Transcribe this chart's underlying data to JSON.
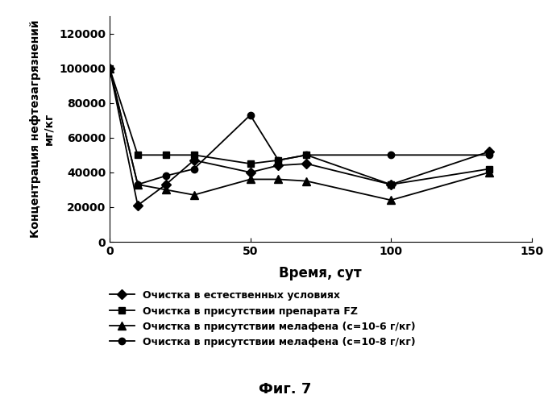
{
  "series": [
    {
      "label": "Очистка в естественных условиях",
      "x": [
        0,
        10,
        20,
        30,
        50,
        60,
        70,
        100,
        135
      ],
      "y": [
        100000,
        21000,
        33000,
        47000,
        40000,
        44000,
        45000,
        33000,
        52000
      ],
      "marker": "D",
      "markersize": 6
    },
    {
      "label": "Очистка в присутствии препарата FZ",
      "x": [
        0,
        10,
        20,
        30,
        50,
        60,
        70,
        100,
        135
      ],
      "y": [
        100000,
        50000,
        50000,
        50000,
        45000,
        47000,
        50000,
        33000,
        42000
      ],
      "marker": "s",
      "markersize": 6
    },
    {
      "label": "Очистка в присутствии мелафена (с=10-6 г/кг)",
      "x": [
        0,
        10,
        20,
        30,
        50,
        60,
        70,
        100,
        135
      ],
      "y": [
        100000,
        33000,
        30000,
        27000,
        36000,
        36000,
        35000,
        24000,
        40000
      ],
      "marker": "^",
      "markersize": 7
    },
    {
      "label": "Очистка в присутствии мелафена (с=10-8 г/кг)",
      "x": [
        0,
        10,
        20,
        30,
        50,
        60,
        70,
        100,
        135
      ],
      "y": [
        100000,
        33000,
        38000,
        42000,
        73000,
        47000,
        50000,
        50000,
        50000
      ],
      "marker": "o",
      "markersize": 6
    }
  ],
  "xlabel": "Время, сут",
  "ylabel_top": "Концентрация нефтезагрязнений",
  "ylabel_bottom": "мг/кг",
  "ylim": [
    0,
    130000
  ],
  "xlim": [
    0,
    150
  ],
  "yticks": [
    0,
    20000,
    40000,
    60000,
    80000,
    100000,
    120000
  ],
  "xticks": [
    0,
    50,
    100,
    150
  ],
  "caption": "Фиг. 7",
  "background_color": "#ffffff",
  "figure_size": [
    6.8,
    5.0
  ]
}
